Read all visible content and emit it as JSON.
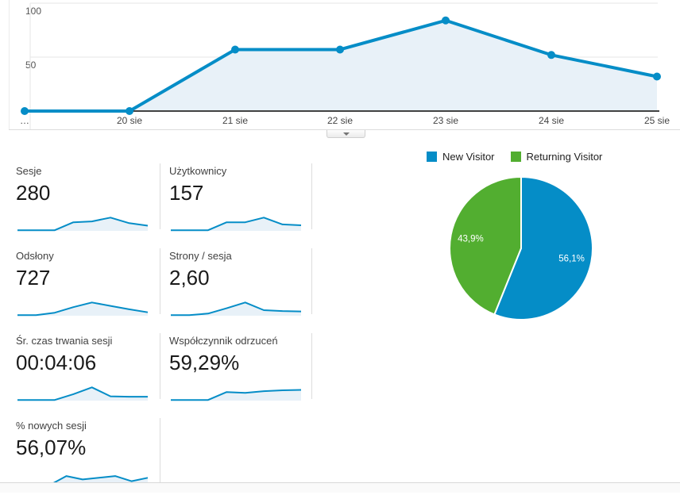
{
  "timeline": {
    "y_tick_labels": [
      "100",
      "50"
    ],
    "x_labels": [
      "…",
      "20 sie",
      "21 sie",
      "22 sie",
      "23 sie",
      "24 sie",
      "25 sie"
    ]
  },
  "collapse_tab": {
    "icon": "chevron-down-icon"
  },
  "metrics": [
    {
      "id": "sesje",
      "label": "Sesje",
      "value": "280",
      "spark": [
        3,
        3,
        3,
        40,
        44,
        62,
        36,
        24
      ]
    },
    {
      "id": "uzytkownicy",
      "label": "Użytkownicy",
      "value": "157",
      "spark": [
        3,
        3,
        3,
        40,
        40,
        62,
        30,
        26
      ]
    },
    {
      "id": "odslony",
      "label": "Odsłony",
      "value": "727",
      "spark": [
        3,
        3,
        14,
        40,
        62,
        46,
        30,
        16
      ]
    },
    {
      "id": "strony-sesja",
      "label": "Strony / sesja",
      "value": "2,60",
      "spark": [
        3,
        3,
        10,
        35,
        62,
        26,
        22,
        20
      ]
    },
    {
      "id": "sr-czas-trwania-sesji",
      "label": "Śr. czas trwania sesji",
      "value": "00:04:06",
      "spark": [
        3,
        3,
        3,
        30,
        62,
        20,
        18,
        18
      ]
    },
    {
      "id": "wspolczynnik-odrzucen",
      "label": "Współczynnik odrzuceń",
      "value": "59,29%",
      "spark": [
        3,
        3,
        3,
        40,
        36,
        44,
        48,
        50
      ]
    },
    {
      "id": "procent-nowych-sesji",
      "label": "% nowych sesji",
      "value": "56,07%",
      "spark": [
        3,
        3,
        3,
        44,
        28,
        36,
        44,
        20,
        36
      ]
    }
  ],
  "legend": [
    {
      "label": "New Visitor",
      "color": "#058dc7"
    },
    {
      "label": "Returning Visitor",
      "color": "#52ae30"
    }
  ],
  "colors": {
    "line_blue": "#058dc7",
    "area_fill": "#e8f1f8",
    "pie_green": "#52ae30",
    "gridline": "#e6e6e6",
    "axis": "#424242"
  },
  "chart_data": [
    {
      "type": "area",
      "title": "",
      "x": [
        "…",
        "20 sie",
        "21 sie",
        "22 sie",
        "23 sie",
        "24 sie",
        "25 sie"
      ],
      "values": [
        0,
        0,
        57,
        57,
        84,
        52,
        32
      ],
      "ylim": [
        0,
        100
      ],
      "yticks": [
        100,
        50
      ],
      "grid": "horizontal",
      "legend_position": "none",
      "line_color": "#058dc7",
      "fill_color": "#e8f1f8"
    },
    {
      "type": "pie",
      "labels": [
        "New Visitor",
        "Returning Visitor"
      ],
      "values": [
        56.1,
        43.9
      ],
      "value_labels": [
        "56,1%",
        "43,9%"
      ],
      "colors": [
        "#058dc7",
        "#52ae30"
      ],
      "start_angle": "top",
      "direction": "clockwise",
      "legend_position": "top"
    }
  ]
}
